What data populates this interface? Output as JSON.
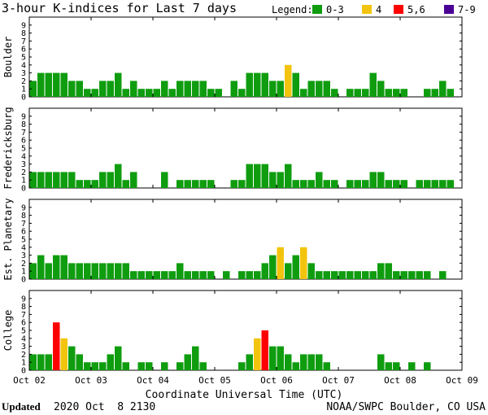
{
  "chart_data": {
    "type": "bar",
    "title": "3-hour K-indices for Last 7 days",
    "legend": {
      "label": "Legend:",
      "entries": [
        {
          "label": "0-3",
          "color": "#0f9d0f"
        },
        {
          "label": "4",
          "color": "#f2c40e"
        },
        {
          "label": "5,6",
          "color": "#ff0000"
        },
        {
          "label": "7-9",
          "color": "#4b0095"
        }
      ]
    },
    "ylim": [
      0,
      9
    ],
    "yticks": [
      "0",
      "1",
      "2",
      "3",
      "4",
      "5",
      "6",
      "7",
      "8",
      "9"
    ],
    "xlabel": "Coordinate Universal Time (UTC)",
    "x_tick_labels": [
      "Oct 02",
      "Oct 03",
      "Oct 04",
      "Oct 05",
      "Oct 06",
      "Oct 07",
      "Oct 08",
      "Oct 09"
    ],
    "panels": [
      {
        "name": "Boulder",
        "values": [
          2,
          3,
          3,
          3,
          3,
          2,
          2,
          1,
          1,
          2,
          2,
          3,
          1,
          2,
          1,
          1,
          1,
          2,
          1,
          2,
          2,
          2,
          2,
          1,
          1,
          0,
          2,
          1,
          3,
          3,
          3,
          2,
          2,
          4,
          3,
          1,
          2,
          2,
          2,
          1,
          0,
          1,
          1,
          1,
          3,
          2,
          1,
          1,
          1,
          0,
          0,
          1,
          1,
          2,
          1,
          0
        ]
      },
      {
        "name": "Fredericksburg",
        "values": [
          2,
          2,
          2,
          2,
          2,
          2,
          1,
          1,
          1,
          2,
          2,
          3,
          1,
          2,
          0,
          0,
          0,
          2,
          0,
          1,
          1,
          1,
          1,
          1,
          0,
          0,
          1,
          1,
          3,
          3,
          3,
          2,
          2,
          3,
          1,
          1,
          1,
          2,
          1,
          1,
          0,
          1,
          1,
          1,
          2,
          2,
          1,
          1,
          1,
          0,
          1,
          1,
          1,
          1,
          1,
          0
        ]
      },
      {
        "name": "Est. Planetary",
        "values": [
          2,
          3,
          2,
          3,
          3,
          2,
          2,
          2,
          2,
          2,
          2,
          2,
          2,
          1,
          1,
          1,
          1,
          1,
          1,
          2,
          1,
          1,
          1,
          1,
          0,
          1,
          0,
          1,
          1,
          1,
          2,
          3,
          4,
          2,
          3,
          4,
          2,
          1,
          1,
          1,
          1,
          1,
          1,
          1,
          1,
          2,
          2,
          1,
          1,
          1,
          1,
          1,
          0,
          1,
          0,
          0
        ]
      },
      {
        "name": "College",
        "values": [
          2,
          2,
          2,
          6,
          4,
          3,
          2,
          1,
          1,
          1,
          2,
          3,
          1,
          0,
          1,
          1,
          0,
          1,
          0,
          1,
          2,
          3,
          1,
          0,
          0,
          0,
          0,
          1,
          2,
          4,
          5,
          3,
          3,
          2,
          1,
          2,
          2,
          2,
          1,
          0,
          0,
          0,
          0,
          0,
          0,
          2,
          1,
          1,
          0,
          1,
          0,
          1,
          0,
          0,
          0,
          0
        ]
      }
    ]
  },
  "footer": {
    "updated_label": "Updated",
    "updated_value": "2020 Oct  8 2130",
    "credit": "NOAA/SWPC Boulder, CO USA"
  }
}
